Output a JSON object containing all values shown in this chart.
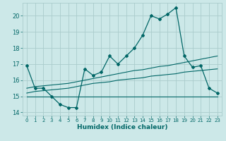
{
  "xlabel": "Humidex (Indice chaleur)",
  "xlim": [
    -0.5,
    23.5
  ],
  "ylim": [
    13.8,
    20.8
  ],
  "yticks": [
    14,
    15,
    16,
    17,
    18,
    19,
    20
  ],
  "xticks": [
    0,
    1,
    2,
    3,
    4,
    5,
    6,
    7,
    8,
    9,
    10,
    11,
    12,
    13,
    14,
    15,
    16,
    17,
    18,
    19,
    20,
    21,
    22,
    23
  ],
  "background_color": "#cce8e8",
  "grid_color": "#aacccc",
  "line_color": "#006666",
  "series_main": [
    16.9,
    15.5,
    15.5,
    15.0,
    14.5,
    14.3,
    14.3,
    16.7,
    16.3,
    16.5,
    17.5,
    17.0,
    17.5,
    18.0,
    18.8,
    20.0,
    19.8,
    20.1,
    20.5,
    17.5,
    16.8,
    16.9,
    15.5,
    15.2
  ],
  "series_flat": [
    15.0,
    15.0,
    15.0,
    15.0,
    15.0,
    15.0,
    15.0,
    15.0,
    15.0,
    15.0,
    15.0,
    15.0,
    15.0,
    15.0,
    15.0,
    15.0,
    15.0,
    15.0,
    15.0,
    15.0,
    15.0,
    15.0,
    15.0,
    15.0
  ],
  "series_trend_upper": [
    15.5,
    15.6,
    15.65,
    15.7,
    15.75,
    15.8,
    15.9,
    16.0,
    16.1,
    16.2,
    16.3,
    16.4,
    16.5,
    16.6,
    16.65,
    16.75,
    16.85,
    16.9,
    17.0,
    17.1,
    17.2,
    17.3,
    17.4,
    17.5
  ],
  "series_trend_mid": [
    15.2,
    15.3,
    15.35,
    15.4,
    15.45,
    15.5,
    15.6,
    15.7,
    15.8,
    15.85,
    15.9,
    16.0,
    16.05,
    16.1,
    16.15,
    16.25,
    16.3,
    16.35,
    16.4,
    16.5,
    16.55,
    16.6,
    16.65,
    16.7
  ]
}
